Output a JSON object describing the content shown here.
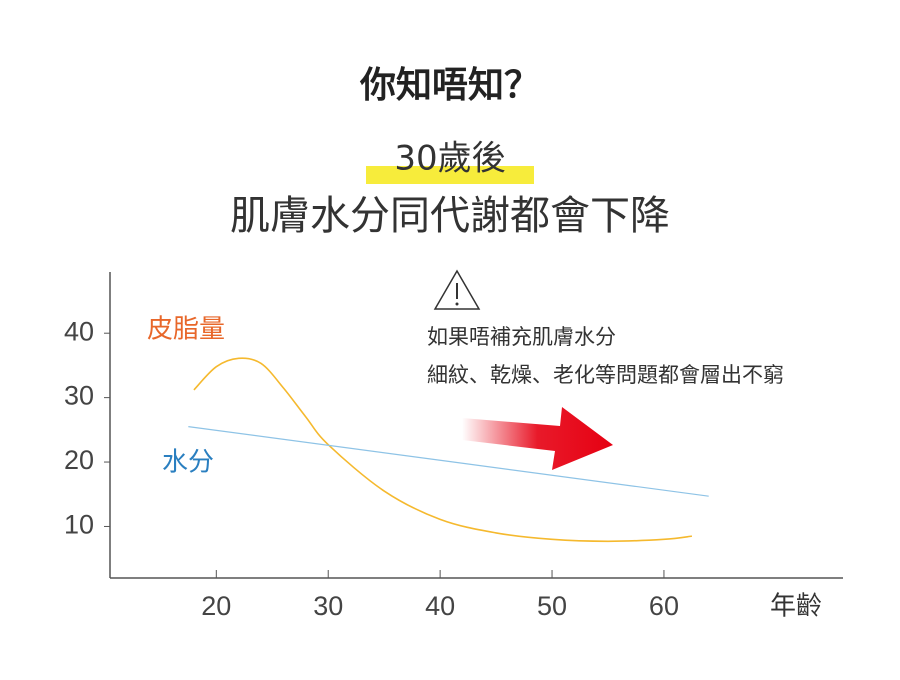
{
  "chart_data": {
    "type": "line",
    "title": "你知唔知？",
    "subtitle_lines": [
      "30歲後",
      "肌膚水分同代謝都會下降"
    ],
    "annotation": [
      "如果唔補充肌膚水分",
      "細紋、乾燥、老化等問題都會層出不窮"
    ],
    "x_label": "年齡",
    "xlim": [
      10.5,
      76
    ],
    "xticks": [
      20,
      30,
      40,
      50,
      60
    ],
    "ylim": [
      2,
      49.5
    ],
    "yticks": [
      10,
      20,
      30,
      40
    ],
    "grid": false,
    "series": [
      {
        "name": "皮脂量",
        "color": "#f5b92e",
        "label_color": "#e8672a",
        "x": [
          18,
          20,
          22,
          24,
          26,
          28,
          30,
          35,
          40,
          45,
          50,
          55,
          60,
          62.5
        ],
        "values": [
          31.2,
          34.8,
          36.1,
          35.3,
          31.5,
          27,
          22.7,
          15.5,
          11.1,
          9,
          8,
          7.7,
          8,
          8.5
        ]
      },
      {
        "name": "水分",
        "color": "#8ec3e6",
        "label_color": "#2a7fc0",
        "x": [
          17.5,
          64
        ],
        "values": [
          25.5,
          14.7
        ]
      }
    ]
  }
}
